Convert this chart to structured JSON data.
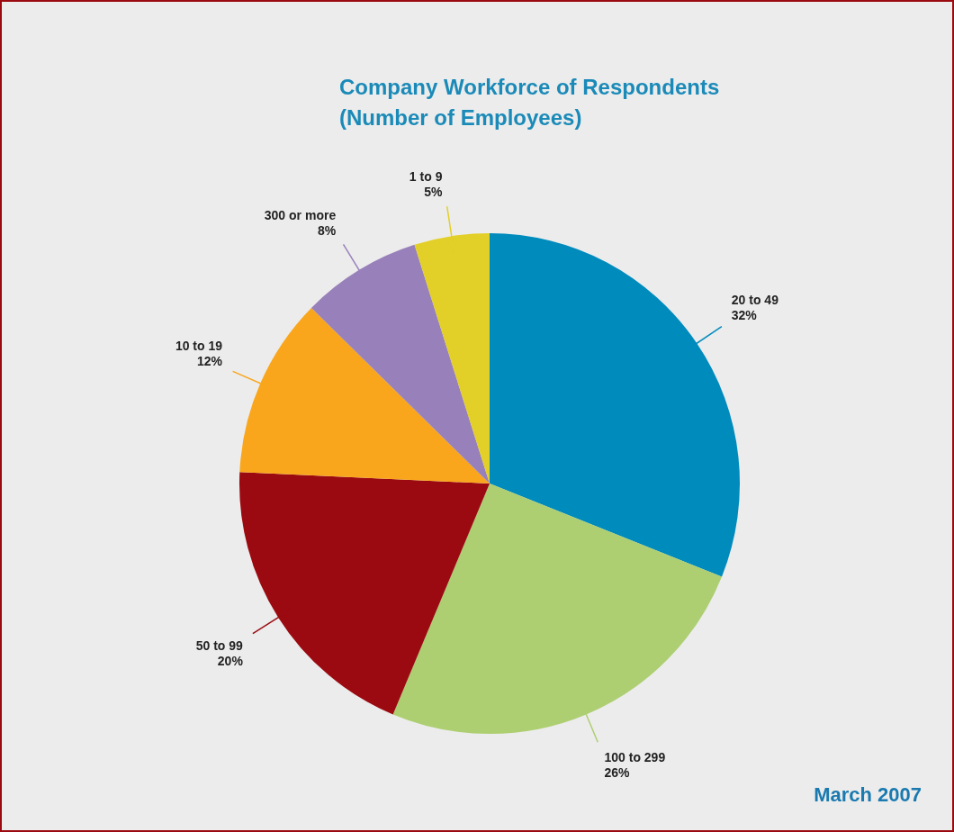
{
  "chart_data": {
    "type": "pie",
    "title": "Company Workforce of Respondents\n(Number of Employees)",
    "categories": [
      "20 to 49",
      "100 to 299",
      "50 to 99",
      "10 to 19",
      "300 or more",
      "1 to 9"
    ],
    "values": [
      32,
      26,
      20,
      12,
      8,
      5
    ],
    "colors": [
      "#008bbd",
      "#adcf72",
      "#9b0a10",
      "#f9a61c",
      "#9880bb",
      "#e2cf27"
    ],
    "value_labels": [
      "32%",
      "26%",
      "20%",
      "12%",
      "8%",
      "5%"
    ],
    "annotations": [
      "March 2007"
    ],
    "legend": false
  }
}
